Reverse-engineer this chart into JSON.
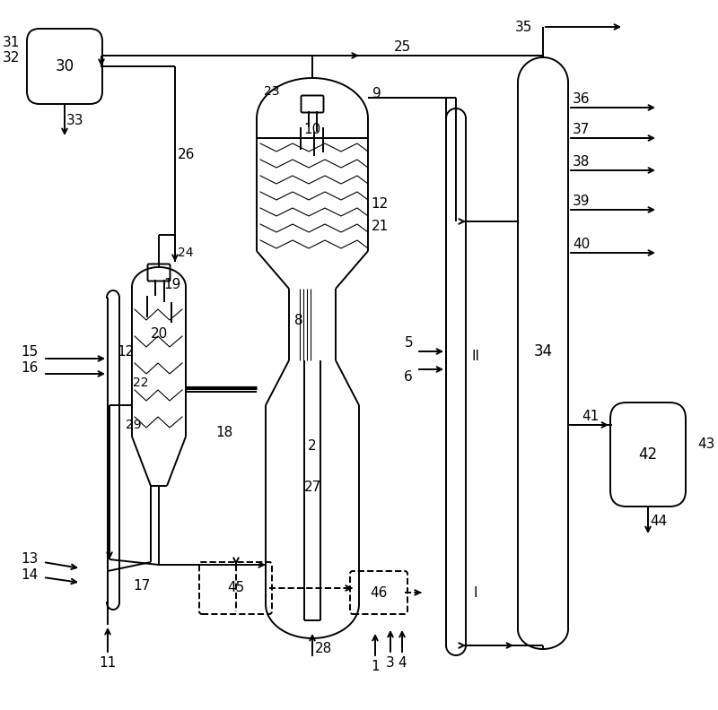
{
  "figsize": [
    8.0,
    7.92
  ],
  "dpi": 100,
  "bg": "#ffffff",
  "lc": "#000000",
  "lw": 1.4
}
